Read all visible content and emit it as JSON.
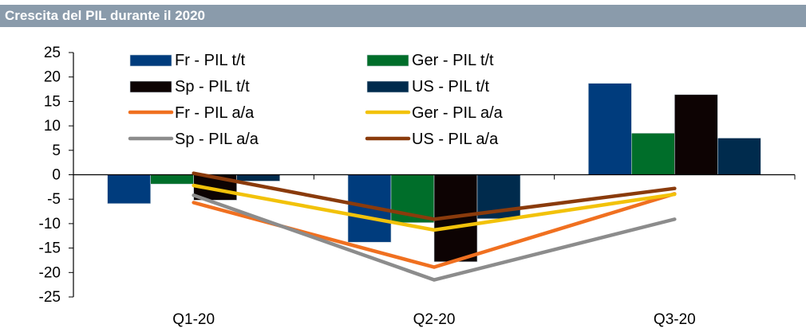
{
  "chart_data": {
    "type": "bar",
    "title": "Crescita del PIL durante il 2020",
    "categories": [
      "Q1-20",
      "Q2-20",
      "Q3-20"
    ],
    "ylim": [
      -25,
      25
    ],
    "yticks": [
      25,
      20,
      15,
      10,
      5,
      0,
      -5,
      -10,
      -15,
      -20,
      -25
    ],
    "ytick_labels": [
      "25",
      "20",
      "15",
      "10",
      "5",
      "0",
      "-5",
      "-10",
      "-15",
      "-20",
      "-25"
    ],
    "grid": false,
    "legend_position": "top-left",
    "series": [
      {
        "name": "Fr - PIL t/t",
        "kind": "bar",
        "color": "#003c7d",
        "values": [
          -5.9,
          -13.8,
          18.7
        ]
      },
      {
        "name": "Ger - PIL t/t",
        "kind": "bar",
        "color": "#006e2a",
        "values": [
          -1.9,
          -9.8,
          8.5
        ]
      },
      {
        "name": "Sp - PIL t/t",
        "kind": "bar",
        "color": "#0d0303",
        "values": [
          -5.2,
          -17.8,
          16.4
        ]
      },
      {
        "name": "US - PIL t/t",
        "kind": "bar",
        "color": "#002b4d",
        "values": [
          -1.3,
          -9.0,
          7.5
        ]
      },
      {
        "name": "Fr - PIL a/a",
        "kind": "line",
        "color": "#f07020",
        "values": [
          -5.7,
          -18.9,
          -3.9
        ]
      },
      {
        "name": "Ger - PIL a/a",
        "kind": "line",
        "color": "#f2c20a",
        "values": [
          -2.2,
          -11.3,
          -4.0
        ]
      },
      {
        "name": "Sp - PIL a/a",
        "kind": "line",
        "color": "#8c8c8c",
        "values": [
          -4.2,
          -21.5,
          -9.1
        ]
      },
      {
        "name": "US - PIL a/a",
        "kind": "line",
        "color": "#8a3b0c",
        "values": [
          0.3,
          -9.1,
          -2.8
        ]
      }
    ]
  }
}
